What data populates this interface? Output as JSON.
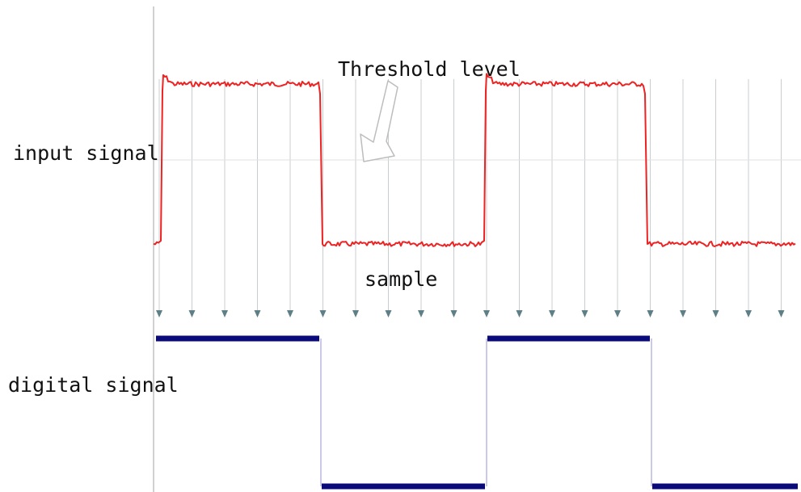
{
  "labels": {
    "input": "input signal",
    "threshold": "Threshold level",
    "sample": "sample",
    "digital": "digital signal"
  },
  "colors": {
    "input_trace": "#ee2222",
    "digital_trace": "#0a0a7a",
    "digital_edge": "#b8b8e0",
    "sample_line": "#c8cdd0",
    "sample_arrow": "#5f7f86",
    "axis": "#d0d0d0",
    "threshold_line": "#e2e2e2",
    "callout_arrow": "#bdbdbd"
  },
  "signal": {
    "input_levels": [
      "low",
      "high",
      "low",
      "high",
      "low"
    ],
    "digital_levels": [
      "high",
      "low",
      "high",
      "low"
    ],
    "sample_count": 20
  }
}
